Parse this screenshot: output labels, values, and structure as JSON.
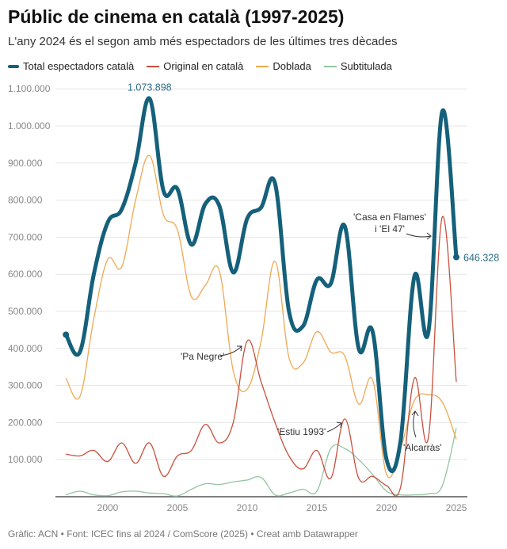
{
  "title": "Públic de cinema en català (1997-2025)",
  "subtitle": "L'any 2024 és el segon amb més espectadors de les últimes tres dècades",
  "footer": "Gràfic: ACN • Font: ICEC fins al 2024 / ComScore (2025) • Creat amb Datawrapper",
  "chart_data": {
    "type": "line",
    "x": [
      1997,
      1998,
      1999,
      2000,
      2001,
      2002,
      2003,
      2004,
      2005,
      2006,
      2007,
      2008,
      2009,
      2010,
      2011,
      2012,
      2013,
      2014,
      2015,
      2016,
      2017,
      2018,
      2019,
      2020,
      2021,
      2022,
      2023,
      2024,
      2025
    ],
    "xticks": [
      "2000",
      "2005",
      "2010",
      "2015",
      "2020",
      "2025"
    ],
    "xtick_values": [
      2000,
      2005,
      2010,
      2015,
      2020,
      2025
    ],
    "yticks": [
      "100.000",
      "200.000",
      "300.000",
      "400.000",
      "500.000",
      "600.000",
      "700.000",
      "800.000",
      "900.000",
      "1.000.000",
      "1.100.000"
    ],
    "ylim": [
      0,
      1100000
    ],
    "grid": true,
    "legend": "top",
    "series": [
      {
        "name": "Total espectadors català",
        "color": "#15607a",
        "values": [
          437000,
          390000,
          600000,
          740000,
          775000,
          900000,
          1073898,
          825000,
          830000,
          680000,
          790000,
          785000,
          605000,
          750000,
          780000,
          845000,
          500000,
          460000,
          585000,
          575000,
          730000,
          400000,
          445000,
          100000,
          150000,
          595000,
          445000,
          1040000,
          646328
        ]
      },
      {
        "name": "Original en català",
        "color": "#c9503c",
        "values": [
          115000,
          110000,
          125000,
          95000,
          145000,
          90000,
          145000,
          55000,
          110000,
          125000,
          195000,
          145000,
          200000,
          420000,
          310000,
          200000,
          110000,
          75000,
          125000,
          50000,
          210000,
          50000,
          55000,
          30000,
          25000,
          320000,
          160000,
          755000,
          310000
        ]
      },
      {
        "name": "Doblada",
        "color": "#f0a851",
        "values": [
          320000,
          270000,
          480000,
          640000,
          620000,
          800000,
          920000,
          760000,
          720000,
          540000,
          570000,
          610000,
          340000,
          290000,
          420000,
          635000,
          375000,
          360000,
          445000,
          390000,
          380000,
          250000,
          315000,
          60000,
          130000,
          260000,
          275000,
          255000,
          155000
        ]
      },
      {
        "name": "Subtitulada",
        "color": "#94c4a0",
        "values": [
          5000,
          15000,
          5000,
          3000,
          13000,
          15000,
          10000,
          8000,
          2000,
          20000,
          35000,
          33000,
          40000,
          45000,
          52000,
          5000,
          10000,
          20000,
          15000,
          130000,
          130000,
          100000,
          60000,
          15000,
          5000,
          5000,
          8000,
          30000,
          185000
        ]
      }
    ],
    "data_labels": [
      {
        "x": 2003,
        "text": "1.073.898"
      },
      {
        "x": 2025,
        "text": "646.328"
      }
    ],
    "annotations": [
      {
        "text": "'Pa Negre'",
        "x": 2010
      },
      {
        "text": "'Estiu 1993'",
        "x": 2017
      },
      {
        "text": "'Alcarràs'",
        "x": 2022
      },
      {
        "text": "'Casa en Flames'",
        "x": 2024
      },
      {
        "text": "i 'El 47'",
        "x": 2024
      }
    ]
  }
}
